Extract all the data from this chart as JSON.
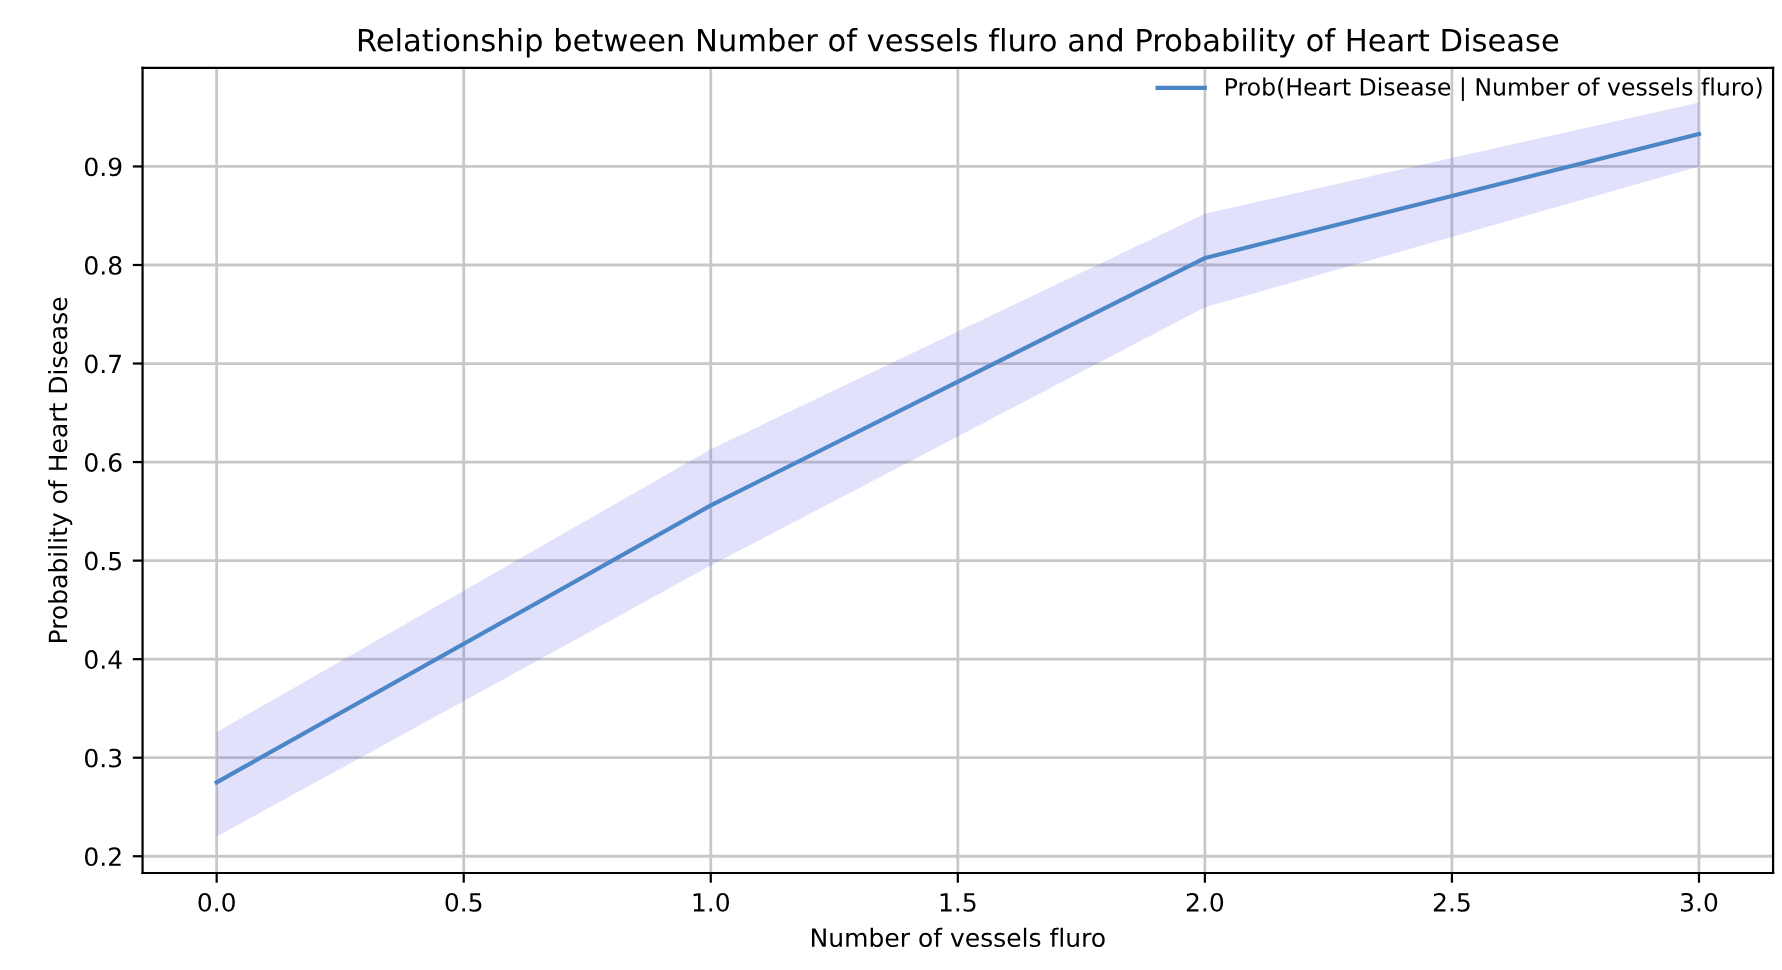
{
  "chart_data": {
    "type": "line",
    "title": "Relationship between Number of vessels fluro and Probability of Heart Disease",
    "xlabel": "Number of vessels fluro",
    "ylabel": "Probability of Heart Disease",
    "x": [
      0,
      1,
      2,
      3
    ],
    "series": [
      {
        "name": "Prob(Heart Disease | Number of vessels fluro)",
        "color": "#4c86c6",
        "values": [
          0.275,
          0.556,
          0.807,
          0.933
        ],
        "lower": [
          0.22,
          0.495,
          0.757,
          0.9
        ],
        "upper": [
          0.326,
          0.613,
          0.852,
          0.965
        ]
      }
    ],
    "xlim": [
      -0.15,
      3.15
    ],
    "ylim": [
      0.183,
      1.0
    ],
    "xticks": [
      {
        "value": 0,
        "label": "0.0"
      },
      {
        "value": 0.5,
        "label": "0.5"
      },
      {
        "value": 1,
        "label": "1.0"
      },
      {
        "value": 1.5,
        "label": "1.5"
      },
      {
        "value": 2,
        "label": "2.0"
      },
      {
        "value": 2.5,
        "label": "2.5"
      },
      {
        "value": 3,
        "label": "3.0"
      }
    ],
    "yticks": [
      0.2,
      0.3,
      0.4,
      0.5,
      0.6,
      0.7,
      0.8,
      0.9
    ],
    "grid": true,
    "legend": "top right"
  }
}
